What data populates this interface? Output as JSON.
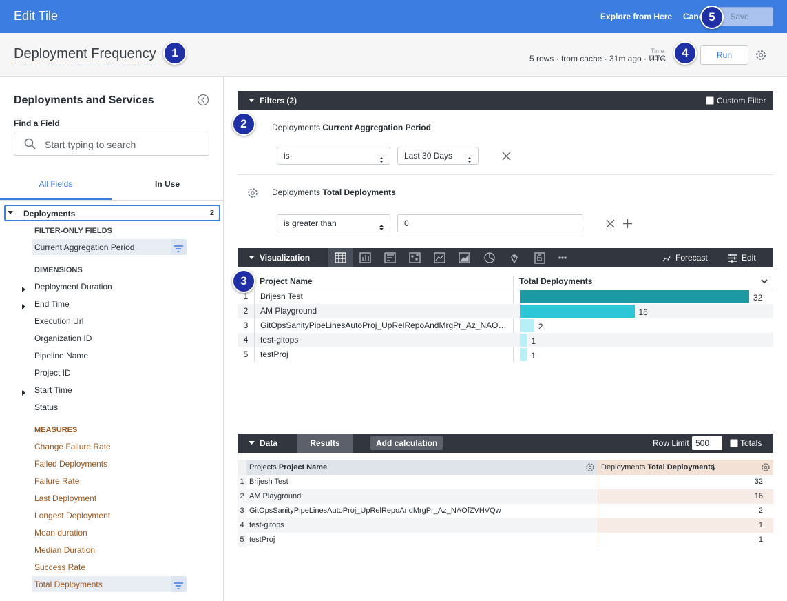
{
  "header": {
    "title": "Edit Tile",
    "explore": "Explore from Here",
    "cancel": "Cancel",
    "save": "Save"
  },
  "badges": [
    1,
    2,
    3,
    4,
    5
  ],
  "tile": {
    "title": "Deployment Frequency",
    "time_zone": "Time Zone",
    "status": "5 rows · from cache · 31m ago · UTC",
    "run": "Run"
  },
  "sidebar": {
    "title": "Deployments and Services",
    "find_label": "Find a Field",
    "search_placeholder": "Start typing to search",
    "tabs": [
      "All Fields",
      "In Use"
    ],
    "view": {
      "name": "Deployments",
      "count": 2
    },
    "filter_only_heading": "FILTER-ONLY FIELDS",
    "filter_only": [
      {
        "label": "Current Aggregation Period",
        "filtered": true
      }
    ],
    "dimensions_heading": "DIMENSIONS",
    "dimensions": [
      {
        "label": "Deployment Duration",
        "expandable": true
      },
      {
        "label": "End Time",
        "expandable": true
      },
      {
        "label": "Execution Url",
        "expandable": false
      },
      {
        "label": "Organization ID",
        "expandable": false
      },
      {
        "label": "Pipeline Name",
        "expandable": false
      },
      {
        "label": "Project ID",
        "expandable": false
      },
      {
        "label": "Start Time",
        "expandable": true
      },
      {
        "label": "Status",
        "expandable": false
      }
    ],
    "measures_heading": "MEASURES",
    "measures": [
      {
        "label": "Change Failure Rate",
        "filtered": false
      },
      {
        "label": "Failed Deployments",
        "filtered": false
      },
      {
        "label": "Failure Rate",
        "filtered": false
      },
      {
        "label": "Last Deployment",
        "filtered": false
      },
      {
        "label": "Longest Deployment",
        "filtered": false
      },
      {
        "label": "Mean duration",
        "filtered": false
      },
      {
        "label": "Median Duration",
        "filtered": false
      },
      {
        "label": "Success Rate",
        "filtered": false
      },
      {
        "label": "Total Deployments",
        "filtered": true
      }
    ]
  },
  "filters": {
    "title": "Filters (2)",
    "custom_filter": "Custom Filter",
    "items": [
      {
        "view": "Deployments",
        "field": "Current Aggregation Period",
        "operator": "is",
        "value": "Last 30 Days"
      },
      {
        "view": "Deployments",
        "field": "Total Deployments",
        "operator": "is greater than",
        "value": "0"
      }
    ]
  },
  "visualization": {
    "title": "Visualization",
    "forecast": "Forecast",
    "edit": "Edit",
    "columns": [
      "Project Name",
      "Total Deployments"
    ]
  },
  "data": {
    "title": "Data",
    "results_tab": "Results",
    "add_calculation": "Add calculation",
    "row_limit_label": "Row Limit",
    "row_limit": 500,
    "totals": "Totals",
    "columns": [
      {
        "view": "Projects",
        "field": "Project Name"
      },
      {
        "view": "Deployments",
        "field": "Total Deployments"
      }
    ]
  },
  "results": {
    "rows": [
      {
        "index": 1,
        "name": "Brijesh Test",
        "value": 32
      },
      {
        "index": 2,
        "name": "AM Playground",
        "value": 16
      },
      {
        "index": 3,
        "name": "GitOpsSanityPipeLinesAutoProj_UpRelRepoAndMrgPr_Az_NAOfZVHVQw",
        "value": 2
      },
      {
        "index": 4,
        "name": "test-gitops",
        "value": 1
      },
      {
        "index": 5,
        "name": "testProj",
        "value": 1
      }
    ]
  }
}
